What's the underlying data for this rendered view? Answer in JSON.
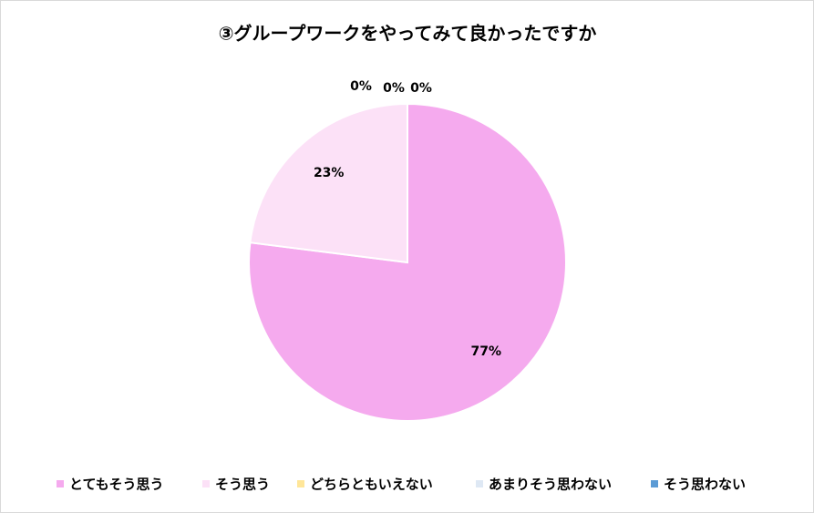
{
  "chart_data": {
    "type": "pie",
    "title": "③グループワークをやってみて良かったですか",
    "categories": [
      "とてもそう思う",
      "そう思う",
      "どちらともいえない",
      "あまりそう思わない",
      "そう思わない"
    ],
    "values": [
      77,
      23,
      0,
      0,
      0
    ],
    "value_labels": [
      "77%",
      "23%",
      "0%",
      "0%",
      "0%"
    ],
    "colors": [
      "#f5aaee",
      "#fce1f7",
      "#ffe699",
      "#dee8f4",
      "#5b9bd5"
    ],
    "legend": "bottom"
  }
}
